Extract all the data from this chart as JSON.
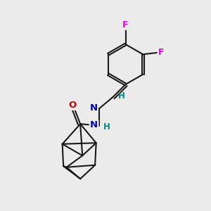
{
  "background_color": "#ebebeb",
  "bond_color": "#1a1a1a",
  "atom_colors": {
    "F": "#ee00ee",
    "N": "#0000cc",
    "O": "#cc0000",
    "H": "#008888",
    "C": "#111111"
  },
  "figsize": [
    3.0,
    3.0
  ],
  "dpi": 100
}
